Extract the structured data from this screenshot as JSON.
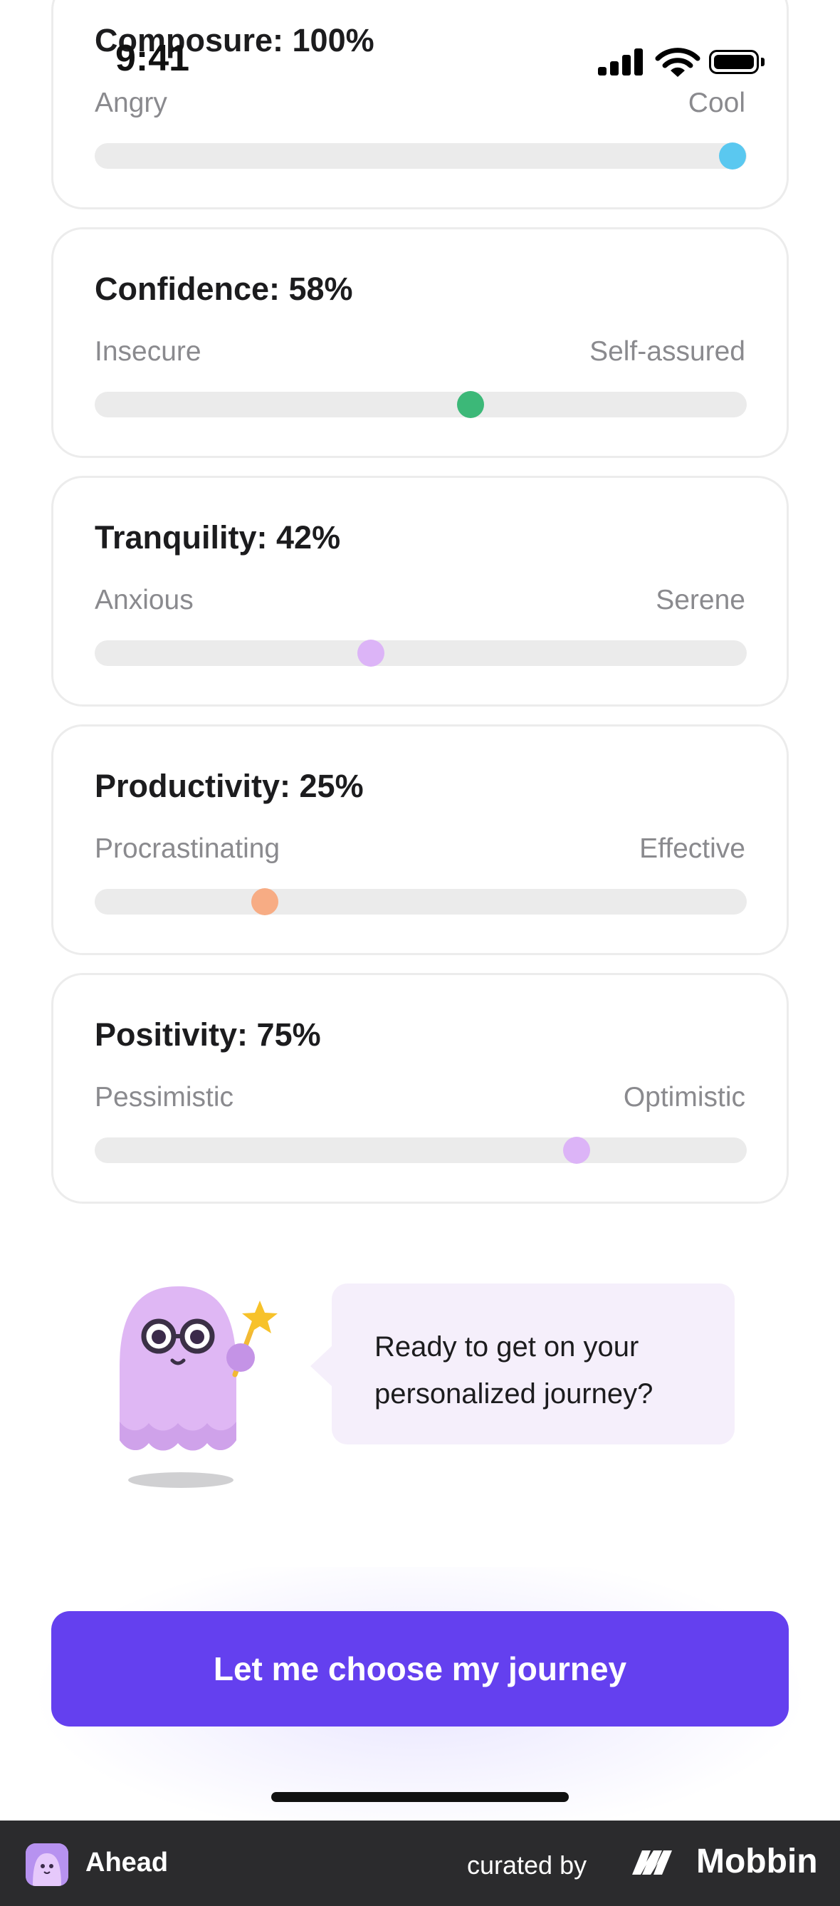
{
  "status_bar": {
    "time": "9:41"
  },
  "traits": [
    {
      "title": "Composure: 100%",
      "left": "Angry",
      "right": "Cool",
      "value": 100,
      "color": "#5ac8f0"
    },
    {
      "title": "Confidence: 58%",
      "left": "Insecure",
      "right": "Self-assured",
      "value": 58,
      "color": "#3cb878"
    },
    {
      "title": "Tranquility: 42%",
      "left": "Anxious",
      "right": "Serene",
      "value": 42,
      "color": "#dcb4f7"
    },
    {
      "title": "Productivity: 25%",
      "left": "Procrastinating",
      "right": "Effective",
      "value": 25,
      "color": "#f7ac84"
    },
    {
      "title": "Positivity: 75%",
      "left": "Pessimistic",
      "right": "Optimistic",
      "value": 75,
      "color": "#dcb4f7"
    }
  ],
  "bubble": {
    "line1": "Ready to get on your",
    "line2": "personalized journey?"
  },
  "cta": {
    "label": "Let me choose my journey",
    "color": "#6440ef"
  },
  "footer": {
    "app_name": "Ahead",
    "curated_by": "curated by",
    "brand": "Mobbin"
  }
}
